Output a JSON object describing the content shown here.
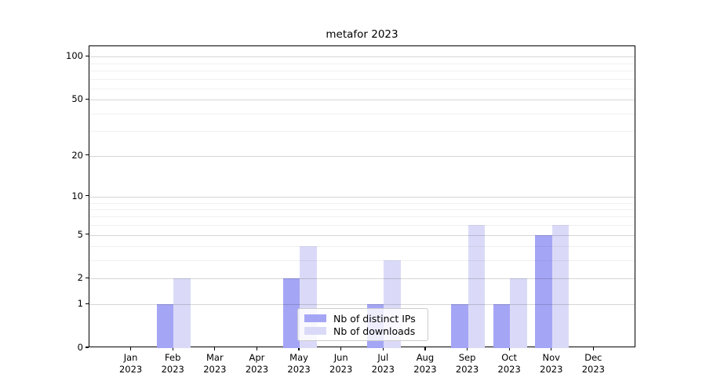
{
  "chart_data": {
    "type": "bar",
    "title": "metafor 2023",
    "months": [
      "Jan",
      "Feb",
      "Mar",
      "Apr",
      "May",
      "Jun",
      "Jul",
      "Aug",
      "Sep",
      "Oct",
      "Nov",
      "Dec"
    ],
    "year": "2023",
    "series": [
      {
        "name": "Nb of distinct IPs",
        "color": "#a5a5f6",
        "values": [
          0,
          1,
          0,
          0,
          2,
          0,
          1,
          0,
          1,
          1,
          5,
          0
        ]
      },
      {
        "name": "Nb of downloads",
        "color": "#dadaf8",
        "values": [
          0,
          2,
          0,
          0,
          4,
          0,
          3,
          0,
          6,
          2,
          6,
          0
        ]
      }
    ],
    "y_axis": {
      "scale": "log1p",
      "ticks": [
        0,
        1,
        2,
        5,
        10,
        20,
        50,
        100
      ],
      "minor_gridlines": [
        3,
        4,
        6,
        7,
        8,
        9,
        30,
        40,
        60,
        70,
        80,
        90
      ],
      "max": 118
    },
    "grid": {
      "major_color": "rgba(0,0,0,0.16)",
      "minor_color": "rgba(0,0,0,0.06)"
    },
    "legend_position": "lower center inside"
  }
}
